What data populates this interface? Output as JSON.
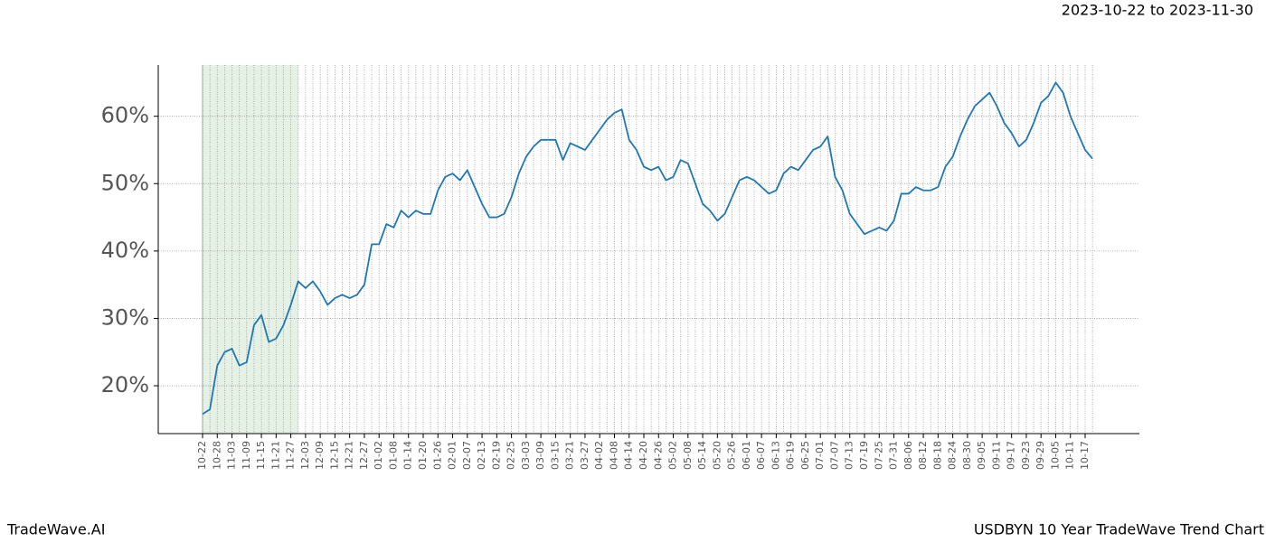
{
  "chart_data": {
    "type": "line",
    "subtitle": "2023-10-22 to 2023-11-30",
    "footer_left": "TradeWave.AI",
    "footer_right": "USDBYN 10 Year TradeWave Trend Chart",
    "categories": [
      "10-22",
      null,
      "10-28",
      null,
      "11-03",
      null,
      "11-09",
      null,
      "11-15",
      null,
      "11-21",
      null,
      "11-27",
      null,
      "12-03",
      null,
      "12-09",
      null,
      "12-15",
      null,
      "12-21",
      null,
      "12-27",
      null,
      "01-02",
      null,
      "01-08",
      null,
      "01-14",
      null,
      "01-20",
      null,
      "01-26",
      null,
      "02-01",
      null,
      "02-07",
      null,
      "02-13",
      null,
      "02-19",
      null,
      "02-25",
      null,
      "03-03",
      null,
      "03-09",
      null,
      "03-15",
      null,
      "03-21",
      null,
      "03-27",
      null,
      "04-02",
      null,
      "04-08",
      null,
      "04-14",
      null,
      "04-20",
      null,
      "04-26",
      null,
      "05-02",
      null,
      "05-08",
      null,
      "05-14",
      null,
      "05-20",
      null,
      "05-26",
      null,
      "06-01",
      null,
      "06-07",
      null,
      "06-13",
      null,
      "06-19",
      null,
      "06-25",
      null,
      "07-01",
      null,
      "07-07",
      null,
      "07-13",
      null,
      "07-19",
      null,
      "07-25",
      null,
      "07-31",
      null,
      "08-06",
      null,
      "08-12",
      null,
      "08-18",
      null,
      "08-24",
      null,
      "08-30",
      null,
      "09-05",
      null,
      "09-11",
      null,
      "09-17",
      null,
      "09-23",
      null,
      "09-29",
      null,
      "10-05",
      null,
      "10-11",
      null,
      "10-17",
      null
    ],
    "series": [
      {
        "color": "#1f77b4",
        "values": [
          15.8,
          16.5,
          23,
          25,
          25.5,
          23,
          23.5,
          29,
          30.5,
          26.5,
          27,
          29,
          32,
          35.5,
          34.5,
          35.5,
          34,
          32,
          33,
          33.5,
          33,
          33.5,
          35,
          41,
          41,
          44,
          43.5,
          46,
          45,
          46,
          45.5,
          45.5,
          49,
          51,
          51.5,
          50.5,
          52,
          49.5,
          47,
          45,
          45,
          45.5,
          48,
          51.5,
          54,
          55.5,
          56.5,
          56.5,
          56.5,
          53.5,
          56,
          55.5,
          55,
          56.5,
          58,
          59.5,
          60.5,
          61,
          56.5,
          55,
          52.5,
          52,
          52.5,
          50.5,
          51,
          53.5,
          53,
          50,
          47,
          46,
          44.5,
          45.5,
          48,
          50.5,
          51,
          50.5,
          49.5,
          48.5,
          49,
          51.5,
          52.5,
          52,
          53.5,
          55,
          55.5,
          57,
          51,
          49,
          45.5,
          44,
          42.5,
          43,
          43.5,
          43,
          44.5,
          48.5,
          48.5,
          49.5,
          49,
          49,
          49.5,
          52.5,
          54,
          57,
          59.5,
          61.5,
          62.5,
          63.5,
          61.5,
          59,
          57.5,
          55.5,
          56.5,
          59,
          62,
          63,
          65,
          63.5,
          60,
          57.5,
          55,
          53.7
        ]
      }
    ],
    "highlight": [
      0,
      13
    ],
    "ylim": [
      12.9,
      67.6
    ],
    "yticks": [
      {
        "value": 20,
        "label": "20%"
      },
      {
        "value": 30,
        "label": "30%"
      },
      {
        "value": 40,
        "label": "40%"
      },
      {
        "value": 50,
        "label": "50%"
      },
      {
        "value": 60,
        "label": "60%"
      }
    ],
    "grid": true
  }
}
